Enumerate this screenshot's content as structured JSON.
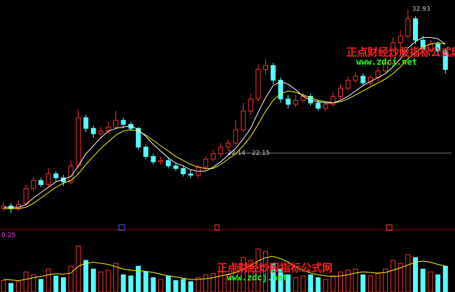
{
  "chart_data": {
    "type": "candlestick",
    "open": [
      18.0,
      18.2,
      18.0,
      18.4,
      19.5,
      20.1,
      19.8,
      20.6,
      20.3,
      20.0,
      21.2,
      24.8,
      24.0,
      23.6,
      23.8,
      24.1,
      24.6,
      24.3,
      24.0,
      22.6,
      21.9,
      21.5,
      21.6,
      21.2,
      21.0,
      20.6,
      20.5,
      21.1,
      21.7,
      22.1,
      22.6,
      22.9,
      23.9,
      25.3,
      26.2,
      28.4,
      28.7,
      27.6,
      26.2,
      25.8,
      26.1,
      26.4,
      25.9,
      25.5,
      25.8,
      26.4,
      27.0,
      27.6,
      27.9,
      27.4,
      27.8,
      28.3,
      28.9,
      30.4,
      30.9,
      32.2,
      30.6,
      29.9,
      30.3,
      29.8
    ],
    "high": [
      18.5,
      18.4,
      18.6,
      19.8,
      20.4,
      20.3,
      21.0,
      20.8,
      20.5,
      21.6,
      25.4,
      25.0,
      24.2,
      24.1,
      24.5,
      25.3,
      24.8,
      24.5,
      24.1,
      22.8,
      22.1,
      21.9,
      21.8,
      21.4,
      21.2,
      20.9,
      21.3,
      21.9,
      22.4,
      22.9,
      23.2,
      24.6,
      25.9,
      26.6,
      28.8,
      29.2,
      28.9,
      27.8,
      26.5,
      26.5,
      26.7,
      26.6,
      26.1,
      26.0,
      26.7,
      27.3,
      27.9,
      28.2,
      28.1,
      28.0,
      28.6,
      29.2,
      30.8,
      31.3,
      32.93,
      32.4,
      30.9,
      30.6,
      30.5,
      30.0
    ],
    "low": [
      17.8,
      17.7,
      17.8,
      18.2,
      19.3,
      19.6,
      19.6,
      20.0,
      19.7,
      19.8,
      21.0,
      23.7,
      23.3,
      23.3,
      23.6,
      23.9,
      24.0,
      23.8,
      22.4,
      21.7,
      21.3,
      21.3,
      21.0,
      20.8,
      20.4,
      20.3,
      20.3,
      20.9,
      21.5,
      21.9,
      22.4,
      22.7,
      23.7,
      25.0,
      26.0,
      28.0,
      27.3,
      25.9,
      25.5,
      25.6,
      25.9,
      25.7,
      25.3,
      25.3,
      25.6,
      26.2,
      26.8,
      27.4,
      27.2,
      27.2,
      27.5,
      28.1,
      28.7,
      30.1,
      30.7,
      30.3,
      29.6,
      29.7,
      29.5,
      28.1
    ],
    "close": [
      18.2,
      18.0,
      18.3,
      19.5,
      20.1,
      19.8,
      20.6,
      20.3,
      20.0,
      21.2,
      24.8,
      24.0,
      23.6,
      23.8,
      24.1,
      24.6,
      24.3,
      24.0,
      22.6,
      21.9,
      21.5,
      21.6,
      21.2,
      21.0,
      20.6,
      20.5,
      21.1,
      21.7,
      22.1,
      22.6,
      22.9,
      23.9,
      25.3,
      26.2,
      28.4,
      28.7,
      27.6,
      26.2,
      25.8,
      26.1,
      26.4,
      25.9,
      25.5,
      25.8,
      26.4,
      27.0,
      27.6,
      27.9,
      27.4,
      27.8,
      28.3,
      28.9,
      30.4,
      30.9,
      32.2,
      30.6,
      29.9,
      30.3,
      29.8,
      28.4
    ],
    "ma_fast": [
      18.1,
      18.1,
      18.1,
      18.3,
      18.8,
      19.2,
      19.6,
      20.0,
      20.2,
      20.4,
      21.2,
      22.1,
      22.7,
      23.3,
      23.8,
      24.0,
      24.1,
      24.2,
      23.9,
      23.4,
      22.8,
      22.3,
      21.8,
      21.4,
      21.2,
      20.9,
      20.8,
      20.8,
      21.1,
      21.5,
      22.0,
      22.5,
      23.2,
      24.0,
      25.2,
      26.3,
      27.2,
      27.5,
      27.3,
      26.9,
      26.4,
      26.1,
      26.0,
      25.9,
      25.9,
      26.1,
      26.4,
      26.8,
      27.2,
      27.5,
      27.8,
      28.1,
      28.6,
      29.2,
      30.0,
      30.5,
      30.8,
      30.8,
      30.7,
      30.3
    ],
    "ma_slow": [
      18.0,
      18.0,
      18.0,
      18.1,
      18.4,
      18.8,
      19.2,
      19.6,
      19.9,
      20.1,
      20.6,
      21.3,
      21.9,
      22.5,
      23.0,
      23.5,
      23.8,
      23.9,
      23.8,
      23.5,
      23.1,
      22.7,
      22.3,
      21.9,
      21.6,
      21.3,
      21.1,
      21.0,
      21.0,
      21.3,
      21.7,
      22.1,
      22.7,
      23.4,
      24.3,
      25.3,
      26.1,
      26.6,
      26.8,
      26.7,
      26.5,
      26.3,
      26.1,
      26.0,
      25.9,
      26.0,
      26.2,
      26.5,
      26.8,
      27.1,
      27.4,
      27.7,
      28.1,
      28.6,
      29.2,
      29.7,
      30.1,
      30.3,
      30.4,
      30.3
    ],
    "ylim": [
      17.0,
      33.6
    ],
    "up_color": "#ff3232",
    "down_color": "#54ffff",
    "ma_fast_color": "#ffffff",
    "ma_slow_color": "#ffff00",
    "max_label": 32.93,
    "reference_line": {
      "value": 22.15,
      "label": "22.14 - 22.15"
    },
    "volume": [
      20,
      15,
      18,
      35,
      30,
      22,
      40,
      28,
      25,
      45,
      80,
      55,
      40,
      35,
      38,
      50,
      30,
      28,
      45,
      35,
      25,
      22,
      28,
      20,
      22,
      18,
      25,
      30,
      32,
      35,
      30,
      45,
      60,
      55,
      75,
      70,
      50,
      40,
      30,
      25,
      28,
      30,
      25,
      22,
      28,
      35,
      38,
      40,
      30,
      28,
      32,
      40,
      55,
      50,
      65,
      60,
      40,
      35,
      30,
      45
    ],
    "volume_ma": [
      22,
      21,
      20,
      22,
      25,
      27,
      30,
      32,
      31,
      33,
      45,
      50,
      52,
      50,
      48,
      44,
      40,
      38,
      37,
      36,
      34,
      31,
      28,
      26,
      24,
      22,
      22,
      23,
      25,
      28,
      31,
      34,
      40,
      46,
      54,
      60,
      62,
      58,
      52,
      44,
      38,
      33,
      30,
      28,
      27,
      28,
      30,
      33,
      35,
      34,
      33,
      34,
      38,
      42,
      47,
      52,
      54,
      52,
      48,
      45
    ],
    "vlim": [
      0,
      100
    ],
    "volume_label": "0.25",
    "watermark": {
      "name": "正点财经炒股指标公式网",
      "url": "www.zdcj.net"
    }
  }
}
